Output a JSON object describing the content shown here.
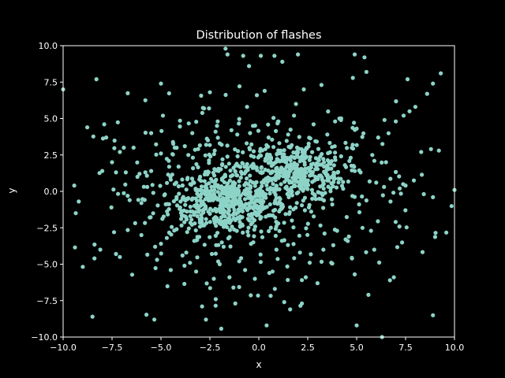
{
  "colors": {
    "background": "#000000",
    "foreground": "#ffffff",
    "marker": "#8dd3c7"
  },
  "chart_data": {
    "type": "scatter",
    "title": "Distribution of flashes",
    "xlabel": "x",
    "ylabel": "y",
    "xlim": [
      -10,
      10
    ],
    "ylim": [
      -10,
      10
    ],
    "grid": false,
    "xticks": [
      -10,
      -7.5,
      -5,
      -2.5,
      0,
      2.5,
      5,
      7.5,
      10
    ],
    "yticks": [
      -10,
      -7.5,
      -5,
      -2.5,
      0,
      2.5,
      5,
      7.5,
      10
    ],
    "xtick_labels": [
      "−10.0",
      "−7.5",
      "−5.0",
      "−2.5",
      "0.0",
      "2.5",
      "5.0",
      "7.5",
      "10.0"
    ],
    "ytick_labels": [
      "−10.0",
      "−7.5",
      "−5.0",
      "−2.5",
      "0.0",
      "2.5",
      "5.0",
      "7.5",
      "10.0"
    ],
    "series": [
      {
        "points": [
          [
            -10.0,
            7.0
          ],
          [
            -9.2,
            -0.7
          ],
          [
            -8.3,
            7.7
          ],
          [
            -8.4,
            -4.6
          ],
          [
            -8.5,
            -8.6
          ],
          [
            -8.0,
            1.4
          ],
          [
            -7.9,
            4.6
          ],
          [
            -7.8,
            3.7
          ],
          [
            -8.1,
            -4.0
          ],
          [
            -7.5,
            2.0
          ],
          [
            -7.4,
            -2.8
          ],
          [
            -7.3,
            1.3
          ],
          [
            -7.3,
            -4.3
          ],
          [
            -7.1,
            2.7
          ],
          [
            -7.1,
            -4.5
          ],
          [
            -6.9,
            3.0
          ],
          [
            -6.8,
            1.3
          ],
          [
            -6.7,
            -0.3
          ],
          [
            -6.6,
            -0.6
          ],
          [
            -6.4,
            3.0
          ],
          [
            -6.2,
            1.0
          ],
          [
            -6.0,
            -0.8
          ],
          [
            -6.0,
            -3.0
          ],
          [
            -5.8,
            1.3
          ],
          [
            -5.7,
            0.3
          ],
          [
            -5.5,
            4.0
          ],
          [
            -5.5,
            1.4
          ],
          [
            -5.4,
            -1.5
          ],
          [
            -5.3,
            -3.8
          ],
          [
            -5.2,
            -4.7
          ],
          [
            -5.0,
            2.6
          ],
          [
            -5.0,
            7.4
          ],
          [
            -4.9,
            5.2
          ],
          [
            -4.8,
            -0.2
          ],
          [
            -4.7,
            -3.2
          ],
          [
            -4.6,
            2.1
          ],
          [
            -4.5,
            0.8
          ],
          [
            -4.5,
            -5.4
          ],
          [
            -4.3,
            3.0
          ],
          [
            -4.2,
            -2.6
          ],
          [
            -4.1,
            1.7
          ],
          [
            -4.0,
            -0.7
          ],
          [
            -3.9,
            -4.4
          ],
          [
            -3.8,
            -5.1
          ],
          [
            -3.6,
            2.5
          ],
          [
            -3.5,
            0.5
          ],
          [
            -3.5,
            -1.7
          ],
          [
            -3.4,
            4.0
          ],
          [
            -3.3,
            -3.4
          ],
          [
            -3.2,
            -5.5
          ],
          [
            -3.1,
            2.9
          ],
          [
            -3.0,
            1.0
          ],
          [
            -3.0,
            -2.0
          ],
          [
            -2.9,
            -7.9
          ],
          [
            -2.8,
            5.7
          ],
          [
            -2.7,
            -8.8
          ],
          [
            -2.6,
            3.5
          ],
          [
            -2.5,
            6.8
          ],
          [
            -2.4,
            -4.3
          ],
          [
            -2.3,
            -6.0
          ],
          [
            -2.2,
            -7.4
          ],
          [
            -2.1,
            4.8
          ],
          [
            -2.0,
            -5.0
          ],
          [
            -1.9,
            3.2
          ],
          [
            -1.8,
            -3.8
          ],
          [
            -1.7,
            9.8
          ],
          [
            -1.6,
            9.4
          ],
          [
            -1.5,
            -5.9
          ],
          [
            -1.4,
            4.2
          ],
          [
            -1.3,
            -6.6
          ],
          [
            -1.2,
            -7.7
          ],
          [
            -1.1,
            3.9
          ],
          [
            -1.0,
            -4.8
          ],
          [
            -0.8,
            9.3
          ],
          [
            -0.7,
            -5.4
          ],
          [
            -0.6,
            5.8
          ],
          [
            -0.5,
            8.6
          ],
          [
            -0.4,
            -3.6
          ],
          [
            -0.3,
            4.5
          ],
          [
            -0.2,
            -6.0
          ],
          [
            -0.1,
            6.6
          ],
          [
            0.1,
            9.3
          ],
          [
            0.3,
            6.9
          ],
          [
            0.4,
            -9.2
          ],
          [
            0.5,
            3.7
          ],
          [
            0.7,
            -5.5
          ],
          [
            0.8,
            9.3
          ],
          [
            0.9,
            -4.0
          ],
          [
            1.0,
            4.8
          ],
          [
            1.2,
            8.9
          ],
          [
            1.3,
            -7.6
          ],
          [
            1.5,
            3.9
          ],
          [
            1.6,
            -8.1
          ],
          [
            1.8,
            5.2
          ],
          [
            1.9,
            6.0
          ],
          [
            2.0,
            9.4
          ],
          [
            2.1,
            -4.2
          ],
          [
            2.2,
            -7.7
          ],
          [
            2.3,
            7.0
          ],
          [
            2.4,
            -5.9
          ],
          [
            2.6,
            -4.9
          ],
          [
            2.8,
            4.6
          ],
          [
            3.0,
            -6.3
          ],
          [
            3.2,
            7.3
          ],
          [
            3.3,
            -4.0
          ],
          [
            3.5,
            3.9
          ],
          [
            3.7,
            -4.9
          ],
          [
            3.9,
            4.8
          ],
          [
            4.0,
            -2.7
          ],
          [
            4.2,
            4.9
          ],
          [
            4.4,
            1.8
          ],
          [
            4.6,
            -3.1
          ],
          [
            4.8,
            3.2
          ],
          [
            4.9,
            9.4
          ],
          [
            4.9,
            -5.7
          ],
          [
            5.0,
            -9.2
          ],
          [
            5.0,
            4.3
          ],
          [
            5.2,
            1.3
          ],
          [
            5.3,
            -2.5
          ],
          [
            5.4,
            9.2
          ],
          [
            5.5,
            8.2
          ],
          [
            5.6,
            -7.1
          ],
          [
            5.8,
            2.5
          ],
          [
            5.9,
            -4.0
          ],
          [
            6.0,
            0.6
          ],
          [
            6.1,
            3.7
          ],
          [
            6.3,
            -10.0
          ],
          [
            6.4,
            0.3
          ],
          [
            6.5,
            2.0
          ],
          [
            6.7,
            -6.1
          ],
          [
            6.9,
            -5.9
          ],
          [
            7.0,
            4.8
          ],
          [
            7.2,
            0.2
          ],
          [
            7.4,
            5.2
          ],
          [
            7.5,
            0.4
          ],
          [
            7.6,
            7.7
          ],
          [
            7.7,
            5.5
          ],
          [
            8.0,
            5.8
          ],
          [
            8.3,
            2.7
          ],
          [
            8.6,
            6.7
          ],
          [
            8.8,
            2.9
          ],
          [
            8.9,
            -0.4
          ],
          [
            8.9,
            -8.5
          ],
          [
            8.9,
            7.4
          ],
          [
            9.2,
            2.8
          ],
          [
            9.3,
            8.1
          ],
          [
            10.0,
            0.1
          ]
        ],
        "clusters": [
          {
            "center": [
              -1.6,
              -0.8
            ],
            "spread": [
              1.5,
              1.1
            ],
            "count": 480
          },
          {
            "center": [
              1.8,
              1.3
            ],
            "spread": [
              1.3,
              1.0
            ],
            "count": 380
          },
          {
            "center": [
              0.0,
              0.0
            ],
            "spread": [
              4.2,
              3.0
            ],
            "count": 380
          }
        ]
      }
    ]
  }
}
